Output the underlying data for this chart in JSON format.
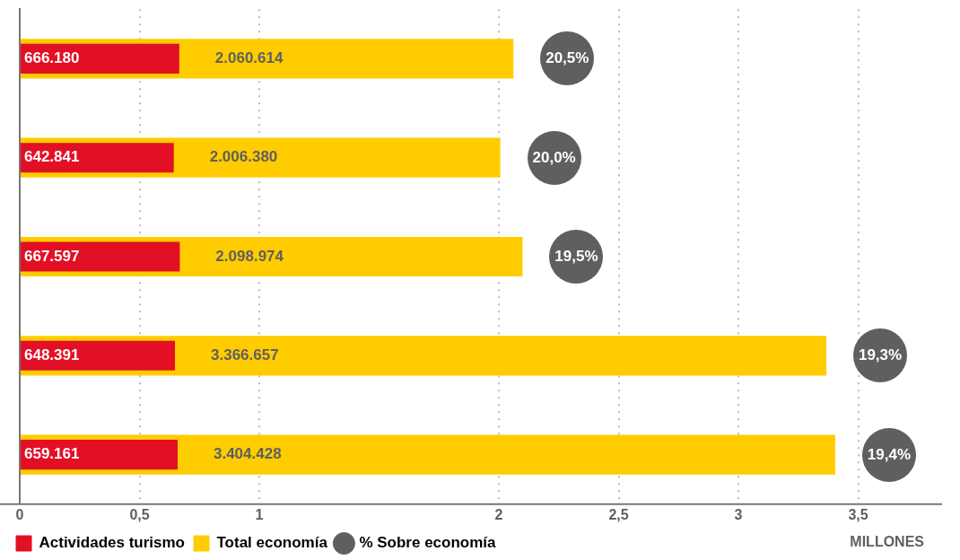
{
  "chart_data": {
    "type": "bar",
    "orientation": "horizontal",
    "xlabel": "MILLONES",
    "categories": [
      null,
      null,
      null,
      null,
      null
    ],
    "xlim": [
      0,
      3.85
    ],
    "xticks": [
      0,
      {
        "value": 0.5,
        "label": "0,5"
      },
      1,
      2,
      {
        "value": 2.5,
        "label": "2,5"
      },
      3,
      {
        "value": 3.5,
        "label": "3,5"
      }
    ],
    "grid": "x",
    "legend": "bottom left",
    "series": [
      {
        "name": "Actividades turismo",
        "color": "#e30f25",
        "values": [
          0.666,
          0.643,
          0.668,
          0.648,
          0.659
        ]
      },
      {
        "name": "Total economía",
        "color": "#ffcc00",
        "values": [
          2.061,
          2.006,
          2.099,
          3.367,
          3.404
        ]
      },
      {
        "name": "% Sobre economía",
        "type": "scatter",
        "color": "#5f5f5f",
        "values": [
          null,
          null,
          null,
          null,
          null
        ]
      }
    ],
    "annotations": [
      "666.180",
      "642.841",
      "667.597",
      "648.391",
      "659.161",
      "2.060.614",
      "2.006.380",
      "2.098.974",
      "3.366.657",
      "3.404.428",
      "20,5%",
      "20,0%",
      "19,5%",
      "19,3%",
      "19,4%"
    ]
  }
}
